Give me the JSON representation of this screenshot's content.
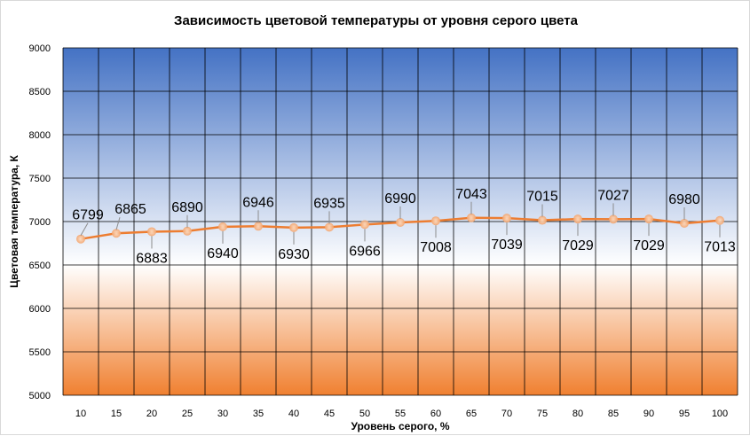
{
  "chart_data": {
    "type": "line",
    "title": "Зависимость цветовой температуры от уровня серого цвета",
    "xlabel": "Уровень серого, %",
    "ylabel": "Цветовая температура, К",
    "ylim": [
      5000,
      9000
    ],
    "y_ticks": [
      5000,
      5500,
      6000,
      6500,
      7000,
      7500,
      8000,
      8500,
      9000
    ],
    "categories": [
      "10",
      "15",
      "20",
      "25",
      "30",
      "35",
      "40",
      "45",
      "50",
      "55",
      "60",
      "65",
      "70",
      "75",
      "80",
      "85",
      "90",
      "95",
      "100"
    ],
    "series": [
      {
        "values": [
          6799,
          6865,
          6883,
          6890,
          6940,
          6946,
          6930,
          6935,
          6966,
          6990,
          7008,
          7043,
          7039,
          7015,
          7029,
          7027,
          7029,
          6980,
          7013
        ]
      }
    ],
    "grid": true,
    "legend": "none",
    "data_label_positions": [
      "above",
      "above",
      "below",
      "above",
      "below",
      "above",
      "below",
      "above",
      "below",
      "above",
      "below",
      "above",
      "below",
      "above",
      "below",
      "above",
      "below",
      "above",
      "below"
    ],
    "colors": {
      "line": "#ed7d31",
      "marker": "#f4b183",
      "grid": "#000000",
      "bg_top": "#4472c4",
      "bg_mid": "#ffffff",
      "bg_bottom": "#f08030"
    }
  }
}
